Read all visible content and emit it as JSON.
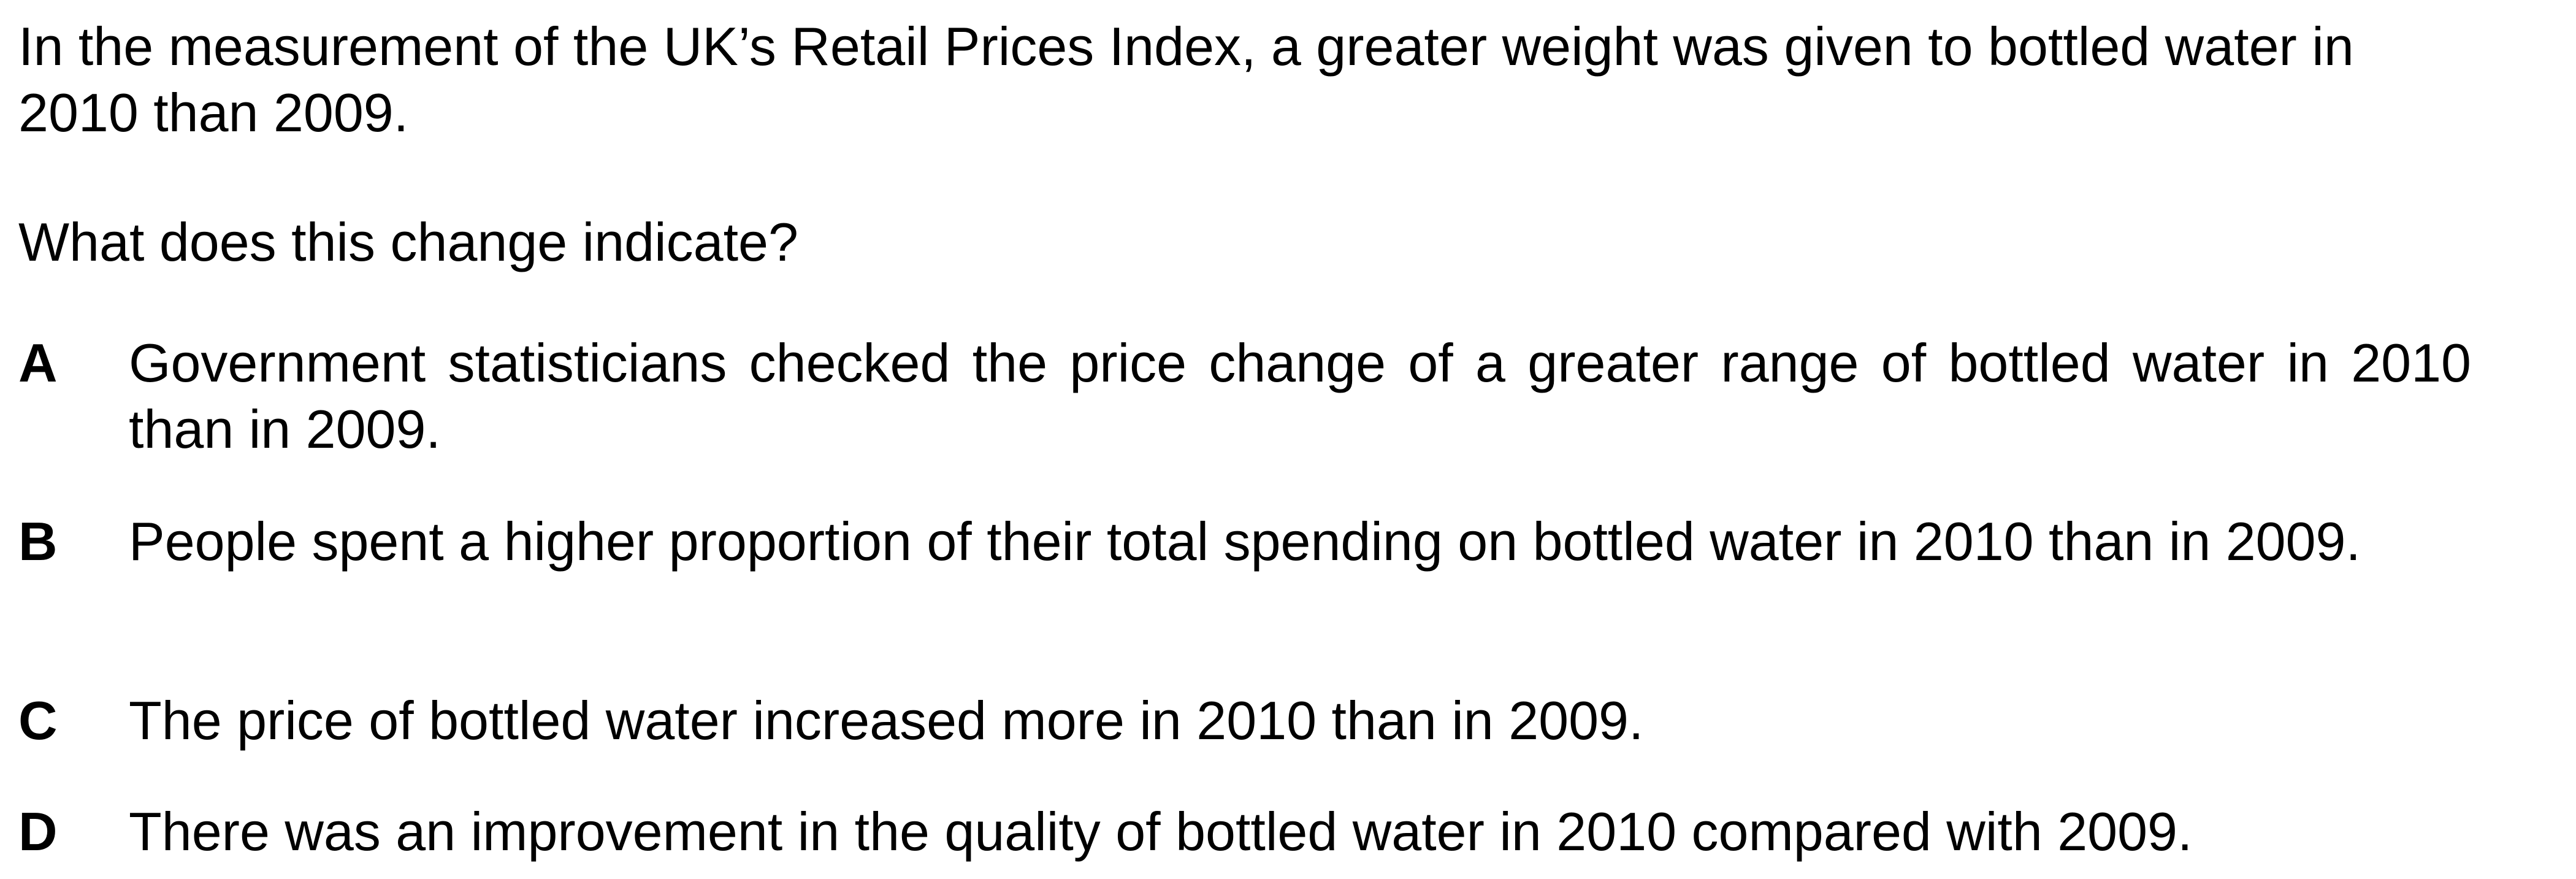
{
  "stem": "In the measurement of the UK’s Retail Prices Index, a greater weight was given to bottled water in 2010 than 2009.",
  "question": "What does this change indicate?",
  "options": [
    {
      "letter": "A",
      "text": "Government statisticians checked the price change of a greater range of bottled water in 2010 than in 2009."
    },
    {
      "letter": "B",
      "text": "People spent a higher proportion of their total spending on bottled water in 2010 than in 2009."
    },
    {
      "letter": "C",
      "text": "The price of bottled water increased more in 2010 than in 2009."
    },
    {
      "letter": "D",
      "text": "There was an improvement in the quality of bottled water in 2010 compared with 2009."
    }
  ]
}
